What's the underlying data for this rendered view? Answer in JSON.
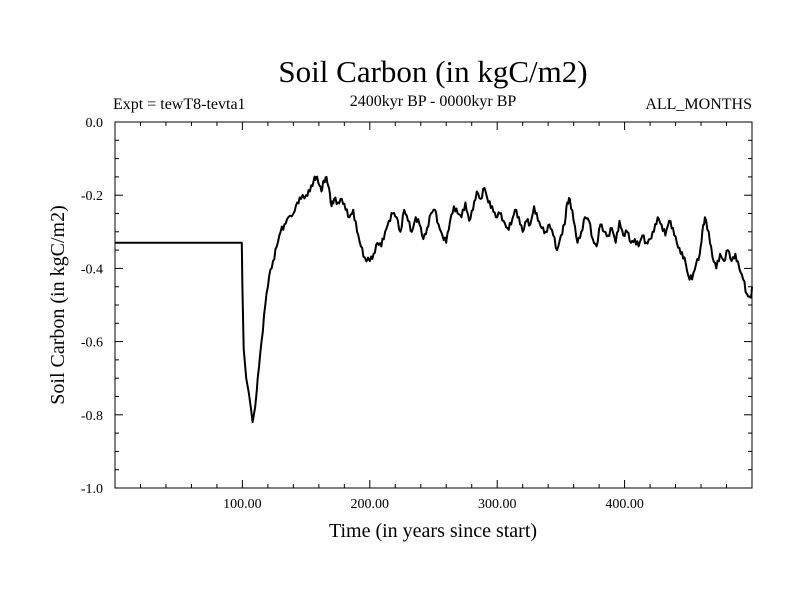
{
  "chart_data": {
    "type": "line",
    "title": "Soil Carbon (in kgC/m2)",
    "expt_label": "Expt = tewT8-tevta1",
    "period_label": "2400kyr BP - 0000kyr BP",
    "months_label": "ALL_MONTHS",
    "xlabel": "Time (in years since start)",
    "ylabel": "Soil Carbon (in kgC/m2)",
    "xlim": [
      0,
      500
    ],
    "ylim": [
      -1.0,
      0.0
    ],
    "x_ticks": [
      {
        "value": 100,
        "label": "100.00"
      },
      {
        "value": 200,
        "label": "200.00"
      },
      {
        "value": 300,
        "label": "300.00"
      },
      {
        "value": 400,
        "label": "400.00"
      }
    ],
    "y_ticks": [
      {
        "value": 0.0,
        "label": "0.0"
      },
      {
        "value": -0.2,
        "label": "-0.2"
      },
      {
        "value": -0.4,
        "label": "-0.4"
      },
      {
        "value": -0.6,
        "label": "-0.6"
      },
      {
        "value": -0.8,
        "label": "-0.8"
      },
      {
        "value": -1.0,
        "label": "-1.0"
      }
    ],
    "series": [
      {
        "name": "Soil Carbon",
        "x": [
          0,
          99.5,
          100,
          101,
          103,
          105,
          107,
          108,
          110,
          112,
          115,
          118,
          121,
          124,
          127,
          130,
          133,
          136,
          140,
          143,
          146,
          150,
          153,
          156,
          158,
          160,
          162,
          164,
          166,
          168,
          170,
          172,
          175,
          178,
          181,
          184,
          187,
          190,
          193,
          196,
          200,
          203,
          206,
          209,
          212,
          215,
          218,
          221,
          224,
          227,
          230,
          233,
          236,
          239,
          242,
          245,
          248,
          251,
          254,
          257,
          260,
          263,
          266,
          269,
          272,
          275,
          278,
          281,
          284,
          287,
          290,
          293,
          296,
          299,
          302,
          305,
          308,
          311,
          314,
          317,
          320,
          323,
          326,
          329,
          332,
          335,
          338,
          341,
          344,
          347,
          350,
          353,
          355,
          357,
          360,
          363,
          366,
          369,
          372,
          375,
          378,
          381,
          384,
          387,
          390,
          393,
          396,
          399,
          402,
          405,
          408,
          411,
          414,
          417,
          420,
          423,
          426,
          429,
          432,
          435,
          438,
          441,
          444,
          447,
          450,
          453,
          456,
          459,
          461,
          463,
          466,
          469,
          472,
          475,
          478,
          481,
          484,
          487,
          490,
          493,
          496,
          499,
          500
        ],
        "y": [
          -0.33,
          -0.33,
          -0.45,
          -0.62,
          -0.7,
          -0.74,
          -0.79,
          -0.82,
          -0.78,
          -0.7,
          -0.6,
          -0.5,
          -0.42,
          -0.38,
          -0.34,
          -0.3,
          -0.28,
          -0.26,
          -0.25,
          -0.22,
          -0.21,
          -0.2,
          -0.19,
          -0.16,
          -0.15,
          -0.17,
          -0.19,
          -0.16,
          -0.15,
          -0.18,
          -0.23,
          -0.21,
          -0.22,
          -0.21,
          -0.24,
          -0.26,
          -0.24,
          -0.3,
          -0.34,
          -0.37,
          -0.38,
          -0.36,
          -0.33,
          -0.34,
          -0.3,
          -0.27,
          -0.25,
          -0.26,
          -0.3,
          -0.24,
          -0.27,
          -0.3,
          -0.26,
          -0.28,
          -0.32,
          -0.29,
          -0.25,
          -0.24,
          -0.28,
          -0.31,
          -0.33,
          -0.27,
          -0.23,
          -0.25,
          -0.26,
          -0.22,
          -0.27,
          -0.24,
          -0.19,
          -0.21,
          -0.18,
          -0.22,
          -0.23,
          -0.26,
          -0.25,
          -0.27,
          -0.29,
          -0.28,
          -0.24,
          -0.26,
          -0.3,
          -0.27,
          -0.28,
          -0.23,
          -0.27,
          -0.29,
          -0.3,
          -0.28,
          -0.31,
          -0.35,
          -0.31,
          -0.28,
          -0.22,
          -0.21,
          -0.27,
          -0.33,
          -0.3,
          -0.26,
          -0.27,
          -0.32,
          -0.34,
          -0.28,
          -0.3,
          -0.31,
          -0.29,
          -0.33,
          -0.27,
          -0.31,
          -0.3,
          -0.33,
          -0.32,
          -0.34,
          -0.31,
          -0.33,
          -0.32,
          -0.3,
          -0.26,
          -0.28,
          -0.31,
          -0.27,
          -0.29,
          -0.33,
          -0.36,
          -0.37,
          -0.42,
          -0.43,
          -0.39,
          -0.36,
          -0.3,
          -0.26,
          -0.3,
          -0.37,
          -0.4,
          -0.36,
          -0.38,
          -0.35,
          -0.38,
          -0.36,
          -0.4,
          -0.43,
          -0.47,
          -0.48,
          -0.45
        ]
      }
    ]
  }
}
